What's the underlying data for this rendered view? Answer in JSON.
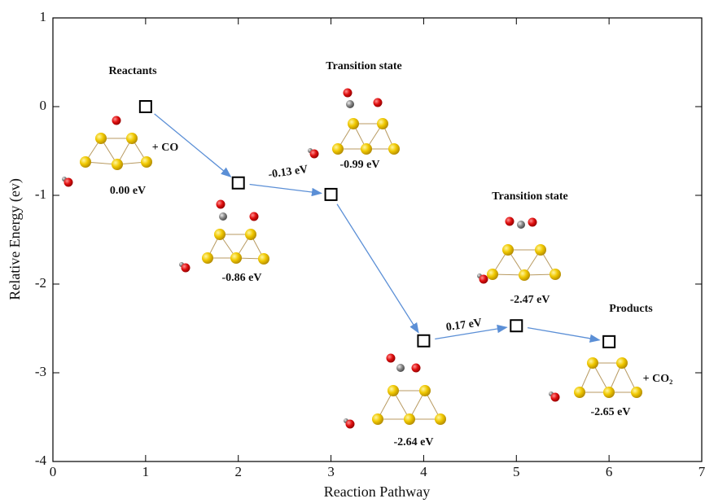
{
  "chart_data": {
    "type": "scatter",
    "x_label": "Reaction Pathway",
    "y_label": "Relative Energy (ev)",
    "x": [
      1,
      2,
      3,
      4,
      5,
      6
    ],
    "values": [
      0,
      -0.86,
      -0.99,
      -2.64,
      -2.47,
      -2.65
    ],
    "value_labels": [
      "0.00 eV",
      "-0.86 eV",
      "-0.99 eV",
      "-2.64 eV",
      "-2.47 eV",
      "-2.65 eV"
    ],
    "color": "#000000",
    "arrow_color": "#5b8fd6",
    "xlim": [
      0,
      7
    ],
    "xticks": [
      0,
      1,
      2,
      3,
      4,
      5,
      6,
      7
    ],
    "ylim": [
      -4,
      1
    ],
    "yticks": [
      -4,
      -3,
      -2,
      -1,
      0,
      1
    ],
    "annotations": [
      "Reactants",
      "+ CO",
      "Transition state",
      "-0.13 eV",
      "Transition state",
      "0.17 eV",
      "Products",
      "+ CO₂"
    ]
  }
}
